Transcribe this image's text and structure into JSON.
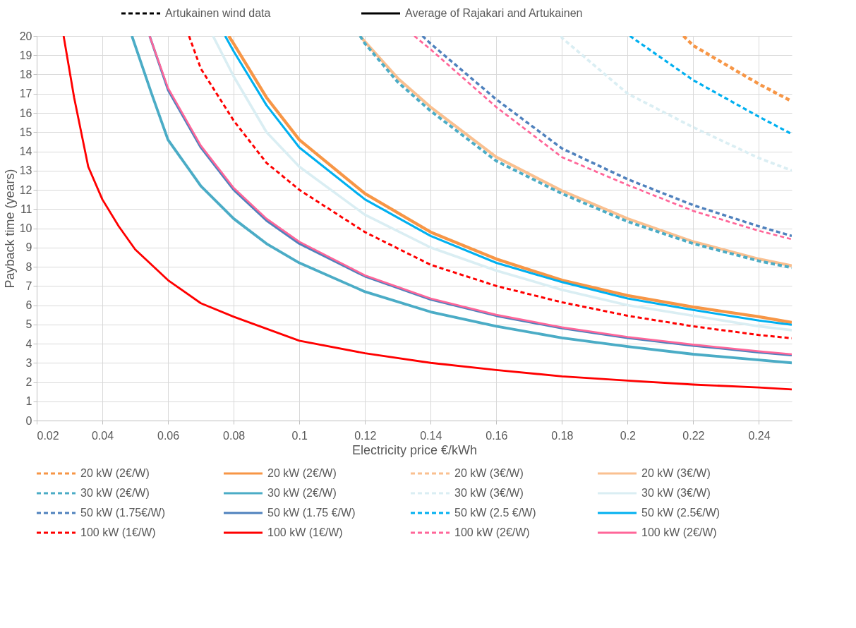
{
  "chart_data": {
    "type": "line",
    "xlabel": "Electricity price €/kWh",
    "ylabel": "Payback time (years)",
    "xlim": [
      0.02,
      0.25
    ],
    "ylim": [
      0,
      20
    ],
    "xticks": [
      0.02,
      0.04,
      0.06,
      0.08,
      0.1,
      0.12,
      0.14,
      0.16,
      0.18,
      0.2,
      0.22,
      0.24
    ],
    "yticks": [
      0,
      1,
      2,
      3,
      4,
      5,
      6,
      7,
      8,
      9,
      10,
      11,
      12,
      13,
      14,
      15,
      16,
      17,
      18,
      19,
      20
    ],
    "grid": true,
    "legend": "bottom",
    "marker": "none",
    "series": [
      {
        "name": "Artukainen wind data",
        "color": "#000000",
        "line_style": "dashed"
      },
      {
        "name": "Average of Rajakari and Artukainen",
        "color": "#000000",
        "line_style": "solid"
      },
      {
        "name": "20 kW (2€/W)",
        "color": "#F79646",
        "line_style": "dashed",
        "x": [
          0.217,
          0.22,
          0.24,
          0.25
        ],
        "values": [
          20,
          19.5,
          17.5,
          16.6
        ]
      },
      {
        "name": "20 kW (2€/W)",
        "color": "#F79646",
        "line_style": "solid",
        "x": [
          0.0785,
          0.08,
          0.09,
          0.1,
          0.12,
          0.14,
          0.16,
          0.18,
          0.2,
          0.22,
          0.24,
          0.25
        ],
        "values": [
          20,
          19.6,
          16.8,
          14.6,
          11.8,
          9.8,
          8.4,
          7.3,
          6.5,
          5.9,
          5.4,
          5.1
        ]
      },
      {
        "name": "20 kW (3€/W)",
        "color": "#FAC090",
        "line_style": "dashed"
      },
      {
        "name": "20 kW (3€/W)",
        "color": "#FAC090",
        "line_style": "solid",
        "x": [
          0.1185,
          0.12,
          0.13,
          0.14,
          0.16,
          0.18,
          0.2,
          0.22,
          0.24,
          0.25
        ],
        "values": [
          20,
          19.7,
          17.8,
          16.3,
          13.7,
          11.95,
          10.5,
          9.3,
          8.4,
          8.05
        ]
      },
      {
        "name": "30 kW (2€/W)",
        "color": "#4BACC6",
        "line_style": "dashed",
        "x": [
          0.1185,
          0.12,
          0.13,
          0.14,
          0.16,
          0.18,
          0.2,
          0.22,
          0.24,
          0.25
        ],
        "values": [
          20,
          19.6,
          17.6,
          16.1,
          13.5,
          11.8,
          10.35,
          9.2,
          8.3,
          7.95
        ]
      },
      {
        "name": "30 kW (2€/W)",
        "color": "#4BACC6",
        "line_style": "solid",
        "x": [
          0.049,
          0.055,
          0.06,
          0.07,
          0.08,
          0.09,
          0.1,
          0.12,
          0.14,
          0.16,
          0.18,
          0.2,
          0.22,
          0.24,
          0.25
        ],
        "values": [
          20,
          17,
          14.6,
          12.2,
          10.5,
          9.2,
          8.2,
          6.7,
          5.65,
          4.9,
          4.3,
          3.85,
          3.45,
          3.15,
          3.0
        ]
      },
      {
        "name": "30 kW (3€/W)",
        "color": "#DAEEF3",
        "line_style": "dashed",
        "x": [
          0.1798,
          0.18,
          0.2,
          0.22,
          0.24,
          0.25
        ],
        "values": [
          20,
          19.9,
          17.0,
          15.25,
          13.65,
          13.0
        ]
      },
      {
        "name": "30 kW (3€/W)",
        "color": "#DAEEF3",
        "line_style": "solid",
        "x": [
          0.0737,
          0.08,
          0.09,
          0.1,
          0.12,
          0.14,
          0.16,
          0.18,
          0.2,
          0.22,
          0.24,
          0.25
        ],
        "values": [
          20,
          17.9,
          15.0,
          13.2,
          10.7,
          9.0,
          7.8,
          6.8,
          6.0,
          5.45,
          4.9,
          4.7
        ]
      },
      {
        "name": "50 kW (1.75€/W)",
        "color": "#4F81BD",
        "line_style": "dashed",
        "x": [
          0.1375,
          0.14,
          0.16,
          0.18,
          0.2,
          0.22,
          0.24,
          0.25
        ],
        "values": [
          20,
          19.6,
          16.7,
          14.15,
          12.55,
          11.2,
          10.1,
          9.6
        ]
      },
      {
        "name": "50 kW (1.75 €/W)",
        "color": "#4F81BD",
        "line_style": "solid",
        "x": [
          0.0544,
          0.06,
          0.07,
          0.08,
          0.09,
          0.1,
          0.12,
          0.14,
          0.16,
          0.18,
          0.2,
          0.22,
          0.24,
          0.25
        ],
        "values": [
          20,
          17.2,
          14.2,
          12.0,
          10.4,
          9.2,
          7.5,
          6.3,
          5.45,
          4.8,
          4.3,
          3.9,
          3.55,
          3.4
        ]
      },
      {
        "name": "50 kW (2.5 €/W)",
        "color": "#00B0F0",
        "line_style": "dashed",
        "x": [
          0.2007,
          0.22,
          0.24,
          0.25
        ],
        "values": [
          20,
          17.7,
          15.8,
          14.9
        ]
      },
      {
        "name": "50 kW (2.5€/W)",
        "color": "#00B0F0",
        "line_style": "solid",
        "x": [
          0.0774,
          0.08,
          0.09,
          0.1,
          0.12,
          0.14,
          0.16,
          0.18,
          0.2,
          0.22,
          0.24,
          0.25
        ],
        "values": [
          20,
          19.2,
          16.4,
          14.2,
          11.5,
          9.6,
          8.2,
          7.2,
          6.35,
          5.75,
          5.2,
          4.98
        ]
      },
      {
        "name": "100 kW (1€/W)",
        "color": "#FF0000",
        "line_style": "dashed",
        "x": [
          0.0664,
          0.07,
          0.08,
          0.09,
          0.1,
          0.12,
          0.14,
          0.16,
          0.18,
          0.2,
          0.22,
          0.24,
          0.25
        ],
        "values": [
          20,
          18.3,
          15.6,
          13.4,
          12.0,
          9.8,
          8.1,
          7.0,
          6.15,
          5.45,
          4.9,
          4.45,
          4.28
        ]
      },
      {
        "name": "100 kW (1€/W)",
        "color": "#FF0000",
        "line_style": "solid",
        "x": [
          0.0282,
          0.0314,
          0.0357,
          0.04,
          0.045,
          0.05,
          0.06,
          0.07,
          0.08,
          0.1,
          0.12,
          0.14,
          0.16,
          0.18,
          0.2,
          0.22,
          0.24,
          0.25
        ],
        "values": [
          20,
          16.8,
          13.2,
          11.5,
          10.1,
          8.9,
          7.3,
          6.1,
          5.4,
          4.15,
          3.5,
          3.0,
          2.63,
          2.3,
          2.08,
          1.87,
          1.72,
          1.62
        ]
      },
      {
        "name": "100 kW (2€/W)",
        "color": "#FF6699",
        "line_style": "dashed",
        "x": [
          0.135,
          0.14,
          0.16,
          0.18,
          0.2,
          0.22,
          0.24,
          0.25
        ],
        "values": [
          20,
          19.3,
          16.3,
          13.7,
          12.25,
          10.9,
          9.87,
          9.43
        ]
      },
      {
        "name": "100 kW (2€/W)",
        "color": "#FF6699",
        "line_style": "solid",
        "x": [
          0.0544,
          0.06,
          0.07,
          0.08,
          0.09,
          0.1,
          0.12,
          0.14,
          0.16,
          0.18,
          0.2,
          0.22,
          0.24,
          0.25
        ],
        "values": [
          20,
          17.3,
          14.3,
          12.1,
          10.5,
          9.3,
          7.55,
          6.35,
          5.5,
          4.85,
          4.35,
          3.95,
          3.6,
          3.45
        ]
      }
    ]
  }
}
